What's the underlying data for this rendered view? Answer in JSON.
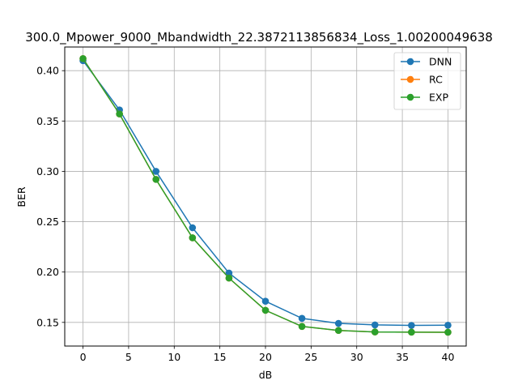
{
  "chart_data": {
    "type": "line",
    "title": "300.0_Mpower_9000_Mbandwidth_22.3872113856834_Loss_1.00200049638",
    "xlabel": "dB",
    "ylabel": "BER",
    "xlim": [
      -2,
      42
    ],
    "ylim": [
      0.1265,
      0.4235
    ],
    "xticks": [
      0,
      5,
      10,
      15,
      20,
      25,
      30,
      35,
      40
    ],
    "yticks": [
      0.15,
      0.2,
      0.25,
      0.3,
      0.35,
      0.4
    ],
    "grid": true,
    "legend_position": "top-right",
    "x": [
      0,
      4,
      8,
      12,
      16,
      20,
      24,
      28,
      32,
      36,
      40
    ],
    "series": [
      {
        "name": "DNN",
        "color": "#1f77b4",
        "values": [
          0.41,
          0.361,
          0.3,
          0.244,
          0.199,
          0.171,
          0.154,
          0.149,
          0.1475,
          0.147,
          0.1472
        ]
      },
      {
        "name": "RC",
        "color": "#ff7f0e",
        "values": [
          0.412,
          0.357,
          0.292,
          0.234,
          0.194,
          0.162,
          0.146,
          0.142,
          0.1405,
          0.1403,
          0.1402
        ]
      },
      {
        "name": "EXP",
        "color": "#2ca02c",
        "values": [
          0.412,
          0.357,
          0.292,
          0.234,
          0.194,
          0.162,
          0.146,
          0.142,
          0.1405,
          0.1403,
          0.1402
        ]
      }
    ]
  }
}
